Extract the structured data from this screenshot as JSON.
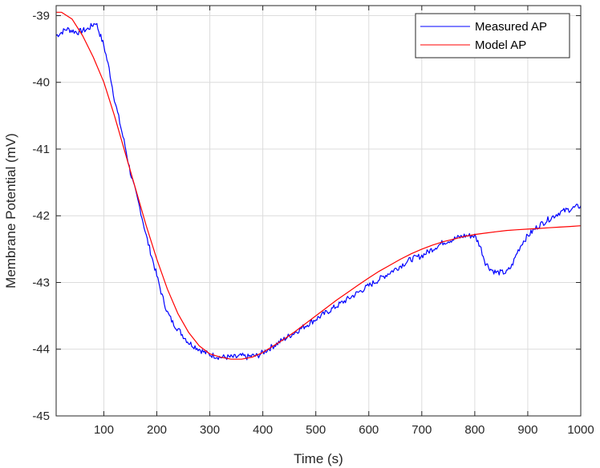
{
  "chart_data": {
    "type": "line",
    "xlabel": "Time (s)",
    "ylabel": "Membrane Potential (mV)",
    "xlim": [
      10,
      1000
    ],
    "ylim": [
      -45,
      -38.85
    ],
    "x_ticks": [
      100,
      200,
      300,
      400,
      500,
      600,
      700,
      800,
      900,
      1000
    ],
    "y_ticks": [
      -45,
      -44,
      -43,
      -42,
      -41,
      -40,
      -39
    ],
    "grid": true,
    "legend_position": "top-right",
    "series": [
      {
        "name": "Measured AP",
        "color": "#0000ff",
        "x": [
          10,
          30,
          50,
          70,
          85,
          100,
          110,
          120,
          130,
          140,
          150,
          160,
          170,
          180,
          190,
          200,
          210,
          220,
          230,
          240,
          250,
          260,
          270,
          280,
          290,
          300,
          310,
          320,
          330,
          340,
          350,
          360,
          370,
          380,
          390,
          400,
          420,
          440,
          460,
          480,
          500,
          520,
          540,
          560,
          580,
          600,
          620,
          640,
          660,
          680,
          700,
          720,
          740,
          760,
          780,
          800,
          810,
          820,
          830,
          840,
          850,
          860,
          870,
          880,
          890,
          900,
          920,
          940,
          960,
          980,
          1000
        ],
        "y": [
          -39.3,
          -39.2,
          -39.25,
          -39.2,
          -39.1,
          -39.45,
          -39.8,
          -40.25,
          -40.6,
          -40.95,
          -41.35,
          -41.65,
          -41.95,
          -42.3,
          -42.6,
          -42.9,
          -43.2,
          -43.45,
          -43.6,
          -43.7,
          -43.8,
          -43.9,
          -43.95,
          -44.0,
          -44.05,
          -44.08,
          -44.1,
          -44.12,
          -44.12,
          -44.12,
          -44.12,
          -44.1,
          -44.12,
          -44.1,
          -44.1,
          -44.05,
          -43.95,
          -43.85,
          -43.75,
          -43.65,
          -43.55,
          -43.45,
          -43.35,
          -43.25,
          -43.15,
          -43.05,
          -42.95,
          -42.85,
          -42.75,
          -42.65,
          -42.6,
          -42.5,
          -42.4,
          -42.35,
          -42.3,
          -42.3,
          -42.45,
          -42.7,
          -42.8,
          -42.85,
          -42.85,
          -42.85,
          -42.75,
          -42.55,
          -42.4,
          -42.3,
          -42.15,
          -42.05,
          -41.95,
          -41.9,
          -41.85
        ]
      },
      {
        "name": "Model AP",
        "color": "#ff0000",
        "x": [
          10,
          20,
          40,
          60,
          80,
          100,
          120,
          140,
          160,
          180,
          200,
          220,
          240,
          260,
          280,
          300,
          320,
          340,
          360,
          380,
          400,
          420,
          440,
          460,
          480,
          500,
          520,
          540,
          560,
          580,
          600,
          620,
          640,
          660,
          680,
          700,
          720,
          740,
          760,
          780,
          800,
          820,
          840,
          860,
          880,
          900,
          920,
          940,
          960,
          980,
          1000
        ],
        "y": [
          -38.95,
          -38.95,
          -39.05,
          -39.3,
          -39.62,
          -40.0,
          -40.5,
          -41.05,
          -41.6,
          -42.15,
          -42.65,
          -43.1,
          -43.47,
          -43.75,
          -43.95,
          -44.07,
          -44.12,
          -44.15,
          -44.15,
          -44.12,
          -44.05,
          -43.95,
          -43.85,
          -43.74,
          -43.62,
          -43.5,
          -43.38,
          -43.26,
          -43.15,
          -43.04,
          -42.93,
          -42.83,
          -42.74,
          -42.65,
          -42.57,
          -42.5,
          -42.44,
          -42.39,
          -42.35,
          -42.31,
          -42.28,
          -42.26,
          -42.24,
          -42.22,
          -42.21,
          -42.2,
          -42.19,
          -42.18,
          -42.17,
          -42.16,
          -42.15
        ]
      }
    ]
  }
}
